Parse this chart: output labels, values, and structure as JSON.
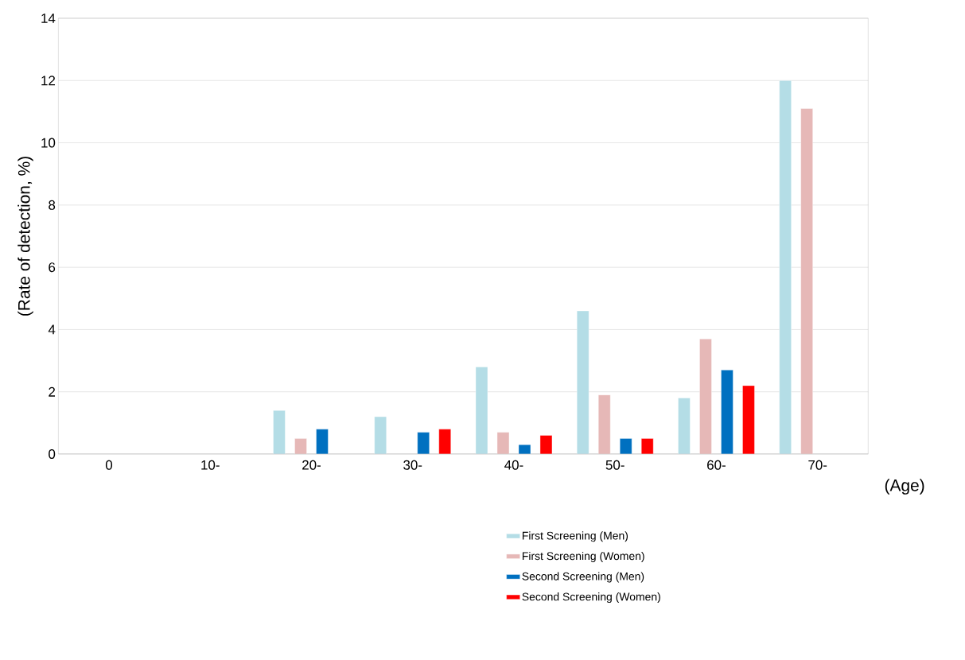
{
  "chart_data": {
    "type": "bar",
    "xlabel": "(Age)",
    "ylabel": "(Rate of detection, %)",
    "categories": [
      "0",
      "10-",
      "20-",
      "30-",
      "40-",
      "50-",
      "60-",
      "70-"
    ],
    "series": [
      {
        "name": "First Screening (Men)",
        "color": "#b4dde6",
        "values": [
          null,
          null,
          1.4,
          1.2,
          2.8,
          4.6,
          1.8,
          12.0
        ]
      },
      {
        "name": "First Screening (Women)",
        "color": "#e6b8b7",
        "values": [
          null,
          null,
          0.5,
          null,
          0.7,
          1.9,
          3.7,
          11.1
        ]
      },
      {
        "name": "Second Screening (Men)",
        "color": "#0070c0",
        "values": [
          null,
          null,
          0.8,
          0.7,
          0.3,
          0.5,
          2.7,
          null
        ]
      },
      {
        "name": "Second Screening (Women)",
        "color": "#ff0000",
        "values": [
          null,
          null,
          null,
          0.8,
          0.6,
          0.5,
          2.2,
          null
        ]
      }
    ],
    "ylim": [
      0,
      14
    ],
    "yticks": [
      0,
      2,
      4,
      6,
      8,
      10,
      12,
      14
    ],
    "grid": "y",
    "legend": "bottom"
  }
}
